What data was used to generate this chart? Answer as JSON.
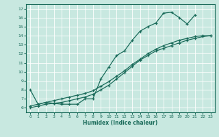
{
  "title": "",
  "xlabel": "Humidex (Indice chaleur)",
  "background_color": "#c8e8e0",
  "line_color": "#1a6b5a",
  "grid_color": "#ffffff",
  "xlim": [
    -0.5,
    23.5
  ],
  "ylim": [
    5.5,
    17.5
  ],
  "xticks": [
    0,
    1,
    2,
    3,
    4,
    5,
    6,
    7,
    8,
    9,
    10,
    11,
    12,
    13,
    14,
    15,
    16,
    17,
    18,
    19,
    20,
    21,
    22,
    23
  ],
  "yticks": [
    6,
    7,
    8,
    9,
    10,
    11,
    12,
    13,
    14,
    15,
    16,
    17
  ],
  "line1_x": [
    0,
    1,
    2,
    3,
    4,
    5,
    6,
    7,
    8,
    9,
    10,
    11,
    12,
    13,
    14,
    15,
    16,
    17,
    18,
    19,
    20,
    21
  ],
  "line1_y": [
    8.0,
    6.4,
    6.6,
    6.5,
    6.4,
    6.4,
    6.4,
    7.0,
    7.0,
    9.2,
    10.5,
    11.8,
    12.3,
    13.5,
    14.5,
    15.0,
    15.4,
    16.5,
    16.6,
    16.0,
    15.3,
    16.3
  ],
  "line2_x": [
    0,
    1,
    2,
    3,
    4,
    5,
    6,
    7,
    8,
    9,
    10,
    11,
    12,
    13,
    14,
    15,
    16,
    17,
    18,
    19,
    20,
    21,
    22,
    23
  ],
  "line2_y": [
    6.0,
    6.2,
    6.4,
    6.5,
    6.6,
    6.8,
    7.0,
    7.2,
    7.5,
    8.0,
    8.5,
    9.2,
    9.9,
    10.6,
    11.3,
    11.8,
    12.3,
    12.6,
    12.9,
    13.2,
    13.5,
    13.7,
    13.9,
    14.0
  ],
  "line3_x": [
    0,
    1,
    2,
    3,
    4,
    5,
    6,
    7,
    8,
    9,
    10,
    11,
    12,
    13,
    14,
    15,
    16,
    17,
    18,
    19,
    20,
    21,
    22,
    23
  ],
  "line3_y": [
    6.2,
    6.4,
    6.6,
    6.8,
    7.0,
    7.2,
    7.4,
    7.6,
    7.9,
    8.4,
    8.9,
    9.5,
    10.1,
    10.8,
    11.4,
    12.0,
    12.5,
    12.9,
    13.2,
    13.5,
    13.7,
    13.9,
    14.0,
    14.0
  ]
}
